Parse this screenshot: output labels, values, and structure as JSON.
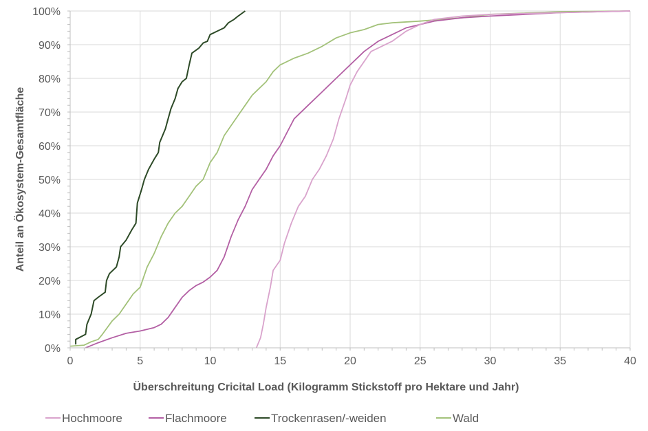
{
  "chart_data": {
    "type": "line",
    "xlabel": "Überschreitung Cricital Load (Kilogramm Stickstoff pro Hektare und Jahr)",
    "ylabel": "Anteil an Ökosystem-Gesamtfläche",
    "xlim": [
      0,
      40
    ],
    "ylim": [
      0,
      100
    ],
    "x_ticks": [
      "0",
      "5",
      "10",
      "15",
      "20",
      "25",
      "30",
      "35",
      "40"
    ],
    "y_ticks": [
      "0%",
      "10%",
      "20%",
      "30%",
      "40%",
      "50%",
      "60%",
      "70%",
      "80%",
      "90%",
      "100%"
    ],
    "grid": true,
    "legend_position": "bottom",
    "series": [
      {
        "name": "Hochmoore",
        "color": "#d9a3cc",
        "points": [
          [
            13.3,
            0
          ],
          [
            13.6,
            3
          ],
          [
            13.8,
            7
          ],
          [
            14,
            12
          ],
          [
            14.3,
            18
          ],
          [
            14.5,
            23
          ],
          [
            15,
            26
          ],
          [
            15.3,
            31
          ],
          [
            15.8,
            37
          ],
          [
            16.3,
            42
          ],
          [
            16.8,
            45
          ],
          [
            17.3,
            50
          ],
          [
            17.8,
            53
          ],
          [
            18.3,
            57
          ],
          [
            18.8,
            62
          ],
          [
            19.2,
            68
          ],
          [
            19.7,
            74
          ],
          [
            20,
            78
          ],
          [
            20.5,
            82
          ],
          [
            21,
            85
          ],
          [
            21.5,
            88
          ],
          [
            22,
            89
          ],
          [
            23,
            91
          ],
          [
            24,
            94
          ],
          [
            25,
            96
          ],
          [
            26,
            97.5
          ],
          [
            28,
            98.5
          ],
          [
            30,
            99
          ],
          [
            35,
            99.5
          ],
          [
            40,
            100
          ]
        ]
      },
      {
        "name": "Flachmoore",
        "color": "#b35fa4",
        "points": [
          [
            1.1,
            0
          ],
          [
            2,
            1.5
          ],
          [
            3,
            3
          ],
          [
            4,
            4.3
          ],
          [
            5,
            5
          ],
          [
            6,
            6
          ],
          [
            6.5,
            7
          ],
          [
            7,
            9
          ],
          [
            7.5,
            12
          ],
          [
            8,
            15
          ],
          [
            8.5,
            17
          ],
          [
            9,
            18.5
          ],
          [
            9.5,
            19.5
          ],
          [
            10,
            21
          ],
          [
            10.5,
            23
          ],
          [
            11,
            27
          ],
          [
            11.5,
            33
          ],
          [
            12,
            38
          ],
          [
            12.5,
            42
          ],
          [
            13,
            47
          ],
          [
            13.5,
            50
          ],
          [
            14,
            53
          ],
          [
            14.5,
            57
          ],
          [
            15,
            60
          ],
          [
            15.5,
            64
          ],
          [
            16,
            68
          ],
          [
            17,
            72
          ],
          [
            18,
            76
          ],
          [
            19,
            80
          ],
          [
            20,
            84
          ],
          [
            21,
            88
          ],
          [
            22,
            91
          ],
          [
            23,
            93
          ],
          [
            24,
            95
          ],
          [
            25,
            96
          ],
          [
            26,
            97
          ],
          [
            28,
            98
          ],
          [
            30,
            98.5
          ],
          [
            35,
            99.5
          ],
          [
            40,
            100
          ]
        ]
      },
      {
        "name": "Trockenrasen/-weiden",
        "color": "#2d4a27",
        "points": [
          [
            0.4,
            1
          ],
          [
            0.4,
            2.5
          ],
          [
            1.1,
            4
          ],
          [
            1.2,
            7
          ],
          [
            1.5,
            10
          ],
          [
            1.7,
            14
          ],
          [
            2,
            15
          ],
          [
            2.5,
            16.5
          ],
          [
            2.6,
            20
          ],
          [
            2.8,
            22
          ],
          [
            3.3,
            24
          ],
          [
            3.5,
            27
          ],
          [
            3.6,
            30
          ],
          [
            4,
            32
          ],
          [
            4.4,
            35
          ],
          [
            4.7,
            37
          ],
          [
            4.8,
            43
          ],
          [
            5.1,
            47
          ],
          [
            5.3,
            50
          ],
          [
            5.6,
            53
          ],
          [
            6,
            56
          ],
          [
            6.3,
            58
          ],
          [
            6.4,
            61
          ],
          [
            6.8,
            65
          ],
          [
            7,
            68
          ],
          [
            7.2,
            71
          ],
          [
            7.5,
            74
          ],
          [
            7.7,
            77
          ],
          [
            8,
            79
          ],
          [
            8.3,
            80
          ],
          [
            8.5,
            84
          ],
          [
            8.7,
            87.5
          ],
          [
            9.2,
            89
          ],
          [
            9.5,
            90.5
          ],
          [
            9.8,
            91
          ],
          [
            10,
            93
          ],
          [
            10.5,
            94
          ],
          [
            11,
            95
          ],
          [
            11.3,
            96.5
          ],
          [
            11.7,
            97.5
          ],
          [
            12,
            98.5
          ],
          [
            12.5,
            100
          ]
        ]
      },
      {
        "name": "Wald",
        "color": "#a3c27a",
        "points": [
          [
            0,
            0.5
          ],
          [
            1,
            0.8
          ],
          [
            1.5,
            1.8
          ],
          [
            2,
            2.5
          ],
          [
            2.3,
            4
          ],
          [
            3,
            8
          ],
          [
            3.5,
            10
          ],
          [
            4,
            13
          ],
          [
            4.5,
            16
          ],
          [
            5,
            18
          ],
          [
            5.5,
            24
          ],
          [
            6,
            28
          ],
          [
            6.5,
            33
          ],
          [
            7,
            37
          ],
          [
            7.5,
            40
          ],
          [
            8,
            42
          ],
          [
            8.5,
            45
          ],
          [
            9,
            48
          ],
          [
            9.5,
            50
          ],
          [
            10,
            55
          ],
          [
            10.5,
            58
          ],
          [
            11,
            63
          ],
          [
            11.5,
            66
          ],
          [
            12,
            69
          ],
          [
            12.5,
            72
          ],
          [
            13,
            75
          ],
          [
            13.5,
            77
          ],
          [
            14,
            79
          ],
          [
            14.5,
            82
          ],
          [
            15,
            84
          ],
          [
            16,
            86
          ],
          [
            17,
            87.5
          ],
          [
            18,
            89.5
          ],
          [
            19,
            92
          ],
          [
            20,
            93.5
          ],
          [
            21,
            94.5
          ],
          [
            22,
            96
          ],
          [
            23,
            96.5
          ],
          [
            25,
            97
          ],
          [
            28,
            98
          ],
          [
            30,
            99
          ],
          [
            35,
            99.8
          ],
          [
            40,
            100
          ]
        ]
      }
    ]
  }
}
